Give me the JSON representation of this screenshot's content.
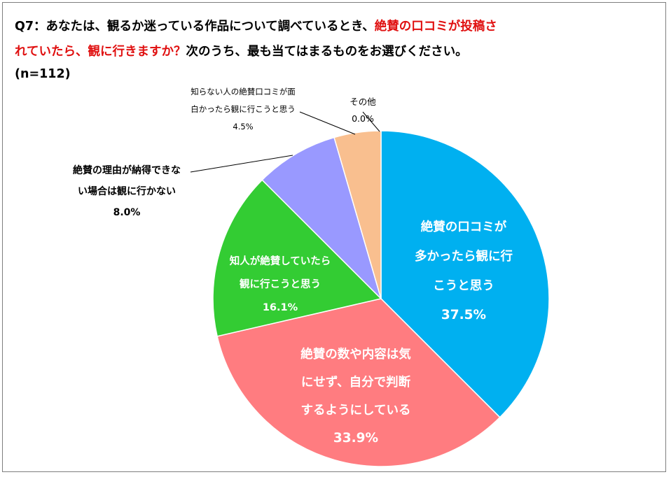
{
  "question": {
    "line1_black": "Q7：あなたは、観るか迷っている作品について調べているとき、",
    "line1_red": "絶賛の口コミが投稿さ",
    "line2_red": "れていたら、観に行きますか？",
    "line2_black": "次のうち、最も当てはまるものをお選びください。",
    "n": "(n=112)"
  },
  "chart_data": {
    "type": "pie",
    "title": "",
    "start_angle_deg": 0,
    "direction": "clockwise",
    "slices": [
      {
        "label_lines": [
          "絶賛の口コミが",
          "多かったら観に行",
          "こうと思う"
        ],
        "value": 37.5,
        "value_label": "37.5%",
        "color": "#00b0f0",
        "label_color": "#ffffff"
      },
      {
        "label_lines": [
          "絶賛の数や内容は気",
          "にせず、自分で判断",
          "するようにしている"
        ],
        "value": 33.9,
        "value_label": "33.9%",
        "color": "#ff7c80",
        "label_color": "#ffffff"
      },
      {
        "label_lines": [
          "知人が絶賛していたら",
          "観に行こうと思う"
        ],
        "value": 16.1,
        "value_label": "16.1%",
        "color": "#33cc33",
        "label_color": "#ffffff"
      },
      {
        "label_lines": [
          "絶賛の理由が納得できな",
          "い場合は観に行かない"
        ],
        "value": 8.0,
        "value_label": "8.0%",
        "color": "#9999ff",
        "label_color": "#000000"
      },
      {
        "label_lines": [
          "知らない人の絶賛口コミが面",
          "白かったら観に行こうと思う"
        ],
        "value": 4.5,
        "value_label": "4.5%",
        "color": "#f9bf8f",
        "label_color": "#000000"
      },
      {
        "label_lines": [
          "その他"
        ],
        "value": 0.0,
        "value_label": "0.0%",
        "color": "#bfbfbf",
        "label_color": "#000000"
      }
    ]
  }
}
